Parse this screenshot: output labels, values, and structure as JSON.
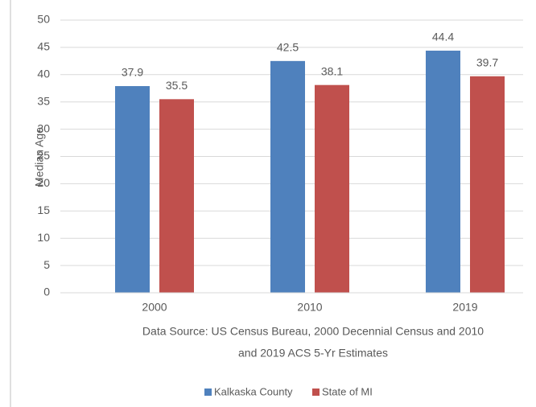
{
  "chart_data": {
    "type": "bar",
    "categories": [
      "2000",
      "2010",
      "2019"
    ],
    "series": [
      {
        "name": "Kalkaska County",
        "color": "#4f81bd",
        "values": [
          37.9,
          42.5,
          44.4
        ]
      },
      {
        "name": "State of MI",
        "color": "#c0504d",
        "values": [
          35.5,
          38.1,
          39.7
        ]
      }
    ],
    "ylabel": "Median Age",
    "ylim": [
      0,
      50
    ],
    "yticks": [
      0,
      5,
      10,
      15,
      20,
      25,
      30,
      35,
      40,
      45,
      50
    ],
    "grid": true,
    "source": [
      "Data Source:  US Census Bureau, 2000 Decennial Census and 2010",
      "and 2019 ACS 5-Yr Estimates"
    ],
    "legend": "bottom"
  }
}
